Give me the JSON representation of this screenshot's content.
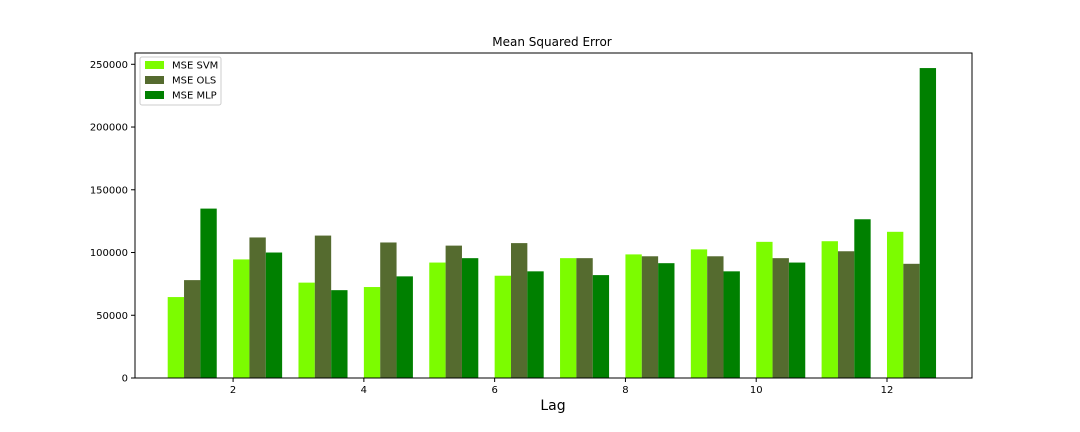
{
  "chart_data": {
    "type": "bar",
    "title": "Mean Squared Error",
    "xlabel": "Lag",
    "ylabel": "",
    "x": [
      1,
      2,
      3,
      4,
      5,
      6,
      7,
      8,
      9,
      10,
      11,
      12
    ],
    "xticks": [
      "2",
      "4",
      "6",
      "8",
      "10",
      "12"
    ],
    "xtick_values": [
      2,
      4,
      6,
      8,
      10,
      12
    ],
    "xlim": [
      0.5,
      13.3
    ],
    "yticks": [
      "0",
      "50000",
      "100000",
      "150000",
      "200000",
      "250000"
    ],
    "ytick_values": [
      0,
      50000,
      100000,
      150000,
      200000,
      250000
    ],
    "ylim": [
      0,
      259000
    ],
    "legend_position": "upper-left",
    "grid": false,
    "series": [
      {
        "name": "MSE SVM",
        "color": "#7cfc00",
        "values": [
          64500,
          94500,
          76000,
          72500,
          92000,
          81500,
          95500,
          98500,
          102500,
          108500,
          109000,
          116500
        ]
      },
      {
        "name": "MSE OLS",
        "color": "#556b2f",
        "values": [
          78000,
          112000,
          113500,
          108000,
          105500,
          107500,
          95500,
          97000,
          97000,
          95500,
          101000,
          91000
        ]
      },
      {
        "name": "MSE MLP",
        "color": "#008000",
        "values": [
          135000,
          100000,
          70000,
          81000,
          95500,
          85000,
          82000,
          91500,
          85000,
          92000,
          126500,
          247000
        ]
      }
    ]
  }
}
